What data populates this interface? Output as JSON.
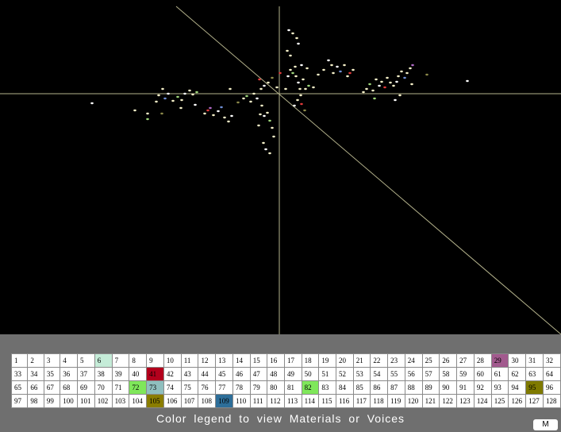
{
  "scene": {
    "background": "#000000",
    "axis_color": "#b5b38c",
    "point_colors": {
      "pale": "#f5f0c8",
      "white": "#ffffff",
      "red": "#e23a3a",
      "blue": "#6f8fd6",
      "green": "#9ed67a",
      "purple": "#b06ac6",
      "olive": "#8c8a4a"
    }
  },
  "legend": {
    "caption": "Color  legend to view  Materials  or  Voices",
    "mode_button": "M",
    "cells": [
      "1",
      "2",
      "3",
      "4",
      "5",
      "6",
      "7",
      "8",
      "9",
      "10",
      "11",
      "12",
      "13",
      "14",
      "15",
      "16",
      "17",
      "18",
      "19",
      "20",
      "21",
      "22",
      "23",
      "24",
      "25",
      "26",
      "27",
      "28",
      "29",
      "30",
      "31",
      "32",
      "33",
      "34",
      "35",
      "36",
      "37",
      "38",
      "39",
      "40",
      "41",
      "42",
      "43",
      "44",
      "45",
      "46",
      "47",
      "48",
      "49",
      "50",
      "51",
      "52",
      "53",
      "54",
      "55",
      "56",
      "57",
      "58",
      "59",
      "60",
      "61",
      "62",
      "63",
      "64",
      "65",
      "66",
      "67",
      "68",
      "69",
      "70",
      "71",
      "72",
      "73",
      "74",
      "75",
      "76",
      "77",
      "78",
      "79",
      "80",
      "81",
      "82",
      "83",
      "84",
      "85",
      "86",
      "87",
      "88",
      "89",
      "90",
      "91",
      "92",
      "93",
      "94",
      "95",
      "96",
      "97",
      "98",
      "99",
      "100",
      "101",
      "102",
      "103",
      "104",
      "105",
      "106",
      "107",
      "108",
      "109",
      "110",
      "111",
      "112",
      "113",
      "114",
      "115",
      "116",
      "117",
      "118",
      "119",
      "120",
      "121",
      "122",
      "123",
      "124",
      "125",
      "126",
      "127",
      "128"
    ],
    "highlights": {
      "6": "#c5ecd8",
      "29": "#a25a8e",
      "41": "#b3001c",
      "72": "#7fe75a",
      "73": "#8fbfbe",
      "82": "#7fe75a",
      "95": "#7f7a00",
      "105": "#8a7d00",
      "109": "#2d6e99"
    }
  }
}
